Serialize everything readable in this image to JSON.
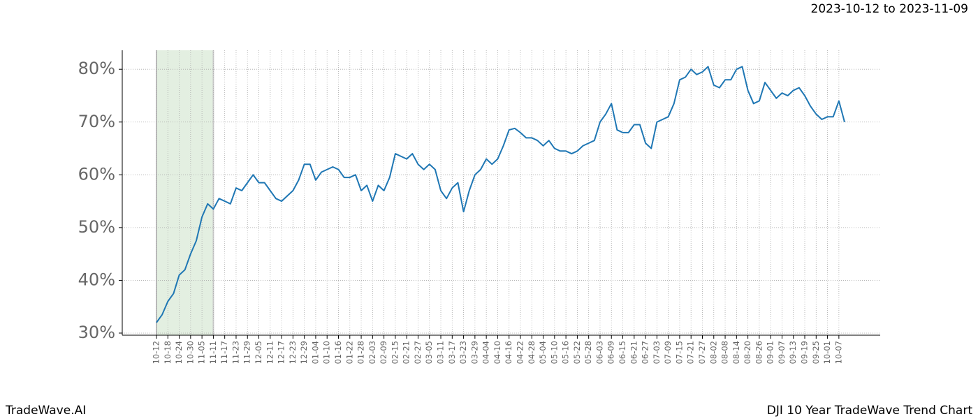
{
  "header": {
    "date_range": "2023-10-12 to 2023-11-09"
  },
  "chart_data": {
    "type": "line",
    "x": [
      "10-12",
      "10-15",
      "10-18",
      "10-21",
      "10-24",
      "10-27",
      "10-30",
      "11-02",
      "11-05",
      "11-08",
      "11-11",
      "11-14",
      "11-17",
      "11-20",
      "11-23",
      "11-26",
      "11-29",
      "12-02",
      "12-05",
      "12-08",
      "12-11",
      "12-14",
      "12-17",
      "12-20",
      "12-23",
      "12-26",
      "12-29",
      "01-01",
      "01-04",
      "01-07",
      "01-10",
      "01-13",
      "01-16",
      "01-19",
      "01-22",
      "01-25",
      "01-28",
      "01-31",
      "02-03",
      "02-06",
      "02-09",
      "02-12",
      "02-15",
      "02-18",
      "02-21",
      "02-24",
      "02-27",
      "03-01",
      "03-05",
      "03-08",
      "03-11",
      "03-14",
      "03-17",
      "03-20",
      "03-23",
      "03-26",
      "03-29",
      "04-01",
      "04-04",
      "04-07",
      "04-10",
      "04-13",
      "04-16",
      "04-19",
      "04-22",
      "04-25",
      "04-28",
      "05-01",
      "05-04",
      "05-07",
      "05-10",
      "05-13",
      "05-16",
      "05-19",
      "05-22",
      "05-25",
      "05-28",
      "05-31",
      "06-03",
      "06-06",
      "06-09",
      "06-12",
      "06-15",
      "06-18",
      "06-21",
      "06-24",
      "06-27",
      "06-30",
      "07-03",
      "07-06",
      "07-09",
      "07-12",
      "07-15",
      "07-18",
      "07-21",
      "07-24",
      "07-27",
      "07-30",
      "08-02",
      "08-05",
      "08-08",
      "08-11",
      "08-14",
      "08-17",
      "08-20",
      "08-23",
      "08-26",
      "08-29",
      "09-01",
      "09-04",
      "09-07",
      "09-10",
      "09-13",
      "09-16",
      "09-19",
      "09-22",
      "09-25",
      "09-28",
      "10-01",
      "10-04",
      "10-07",
      "10-10"
    ],
    "series": [
      {
        "name": "DJI",
        "color": "#1f77b4",
        "values": [
          32,
          33.5,
          36,
          37.5,
          41,
          42,
          45,
          47.5,
          52,
          54.5,
          53.5,
          55.5,
          55,
          54.5,
          57.5,
          57,
          58.5,
          60,
          58.5,
          58.5,
          57,
          55.5,
          55,
          56,
          57,
          59,
          62,
          62,
          59,
          60.5,
          61,
          61.5,
          61,
          59.5,
          59.5,
          60,
          57,
          58,
          55,
          58,
          57,
          59.5,
          64,
          63.5,
          63,
          64,
          62,
          61,
          62,
          61,
          57,
          55.5,
          57.5,
          58.5,
          53,
          57,
          60,
          61,
          63,
          62,
          63,
          65.5,
          68.5,
          68.8,
          68,
          67,
          67,
          66.5,
          65.5,
          66.5,
          65,
          64.5,
          64.5,
          64,
          64.5,
          65.5,
          66,
          66.5,
          70,
          71.5,
          73.5,
          68.5,
          68,
          68,
          69.5,
          69.5,
          66,
          65,
          70,
          70.5,
          71,
          73.5,
          78,
          78.5,
          80,
          79,
          79.5,
          80.5,
          77,
          76.5,
          78,
          78,
          80,
          80.5,
          76,
          73.5,
          74,
          77.5,
          76,
          74.5,
          75.5,
          75,
          76,
          76.5,
          75,
          73,
          71.5,
          70.5,
          71,
          71,
          74,
          70
        ]
      }
    ],
    "xticks": [
      "10-12",
      "10-18",
      "10-24",
      "10-30",
      "11-05",
      "11-11",
      "11-17",
      "11-23",
      "11-29",
      "12-05",
      "12-11",
      "12-17",
      "12-23",
      "12-29",
      "01-04",
      "01-10",
      "01-16",
      "01-22",
      "01-28",
      "02-03",
      "02-09",
      "02-15",
      "02-21",
      "02-27",
      "03-05",
      "03-11",
      "03-17",
      "03-23",
      "03-29",
      "04-04",
      "04-10",
      "04-16",
      "04-22",
      "04-28",
      "05-04",
      "05-10",
      "05-16",
      "05-22",
      "05-28",
      "06-03",
      "06-09",
      "06-15",
      "06-21",
      "06-27",
      "07-03",
      "07-09",
      "07-15",
      "07-21",
      "07-27",
      "08-02",
      "08-08",
      "08-14",
      "08-20",
      "08-26",
      "09-01",
      "09-07",
      "09-13",
      "09-19",
      "09-25",
      "10-01",
      "10-07"
    ],
    "ylim": [
      29.6,
      83.6
    ],
    "yticks": [
      {
        "value": 30,
        "label": "30%"
      },
      {
        "value": 40,
        "label": "40%"
      },
      {
        "value": 50,
        "label": "50%"
      },
      {
        "value": 60,
        "label": "60%"
      },
      {
        "value": 70,
        "label": "70%"
      },
      {
        "value": 80,
        "label": "80%"
      }
    ],
    "grid": true,
    "shade": {
      "from": "10-12",
      "to": "11-11",
      "color": "#e3efe1"
    }
  },
  "footer": {
    "brand": "TradeWave.AI",
    "chart_name": "DJI 10 Year TradeWave Trend Chart"
  }
}
